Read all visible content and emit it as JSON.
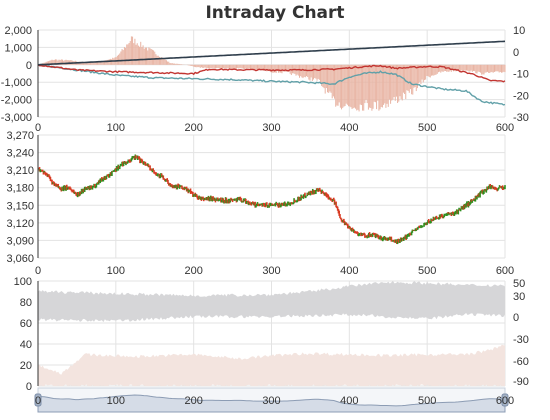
{
  "chart_data": {
    "title": "Intraday Chart",
    "type": "line",
    "x_axis": {
      "min": 0,
      "max": 600,
      "ticks": [
        "0",
        "100",
        "200",
        "300",
        "400",
        "500",
        "600"
      ]
    },
    "panels": [
      {
        "id": "top",
        "y_left": {
          "min": -3000,
          "max": 2000,
          "ticks": [
            "-3,000",
            "-2,000",
            "-1,000",
            "0",
            "1,000",
            "2,000"
          ]
        },
        "y_right": {
          "min": -30,
          "max": 10,
          "ticks": [
            "-30",
            "-20",
            "-10",
            "0",
            "10"
          ]
        },
        "colors": {
          "bars": "#e8b3a2",
          "dark_line": "#2f3e4c",
          "red_line": "#c23531",
          "teal_line": "#61a0a8"
        },
        "bars_keypoints": [
          [
            0,
            0
          ],
          [
            20,
            300
          ],
          [
            40,
            250
          ],
          [
            60,
            150
          ],
          [
            80,
            200
          ],
          [
            100,
            400
          ],
          [
            110,
            900
          ],
          [
            120,
            1500
          ],
          [
            130,
            1200
          ],
          [
            150,
            700
          ],
          [
            170,
            100
          ],
          [
            190,
            0
          ],
          [
            205,
            -150
          ],
          [
            230,
            -200
          ],
          [
            260,
            -200
          ],
          [
            280,
            -250
          ],
          [
            300,
            -400
          ],
          [
            320,
            -450
          ],
          [
            340,
            -700
          ],
          [
            360,
            -900
          ],
          [
            380,
            -2100
          ],
          [
            400,
            -2400
          ],
          [
            420,
            -2300
          ],
          [
            440,
            -2350
          ],
          [
            460,
            -2000
          ],
          [
            480,
            -1600
          ],
          [
            500,
            -700
          ],
          [
            520,
            -400
          ],
          [
            550,
            -300
          ],
          [
            570,
            -500
          ],
          [
            600,
            -400
          ]
        ],
        "dark_line": [
          [
            0,
            0
          ],
          [
            600,
            1350
          ]
        ],
        "red_line_keypoints": [
          [
            0,
            0
          ],
          [
            50,
            -300
          ],
          [
            100,
            -400
          ],
          [
            150,
            -450
          ],
          [
            200,
            -500
          ],
          [
            220,
            -250
          ],
          [
            250,
            -280
          ],
          [
            300,
            -300
          ],
          [
            340,
            -300
          ],
          [
            380,
            -250
          ],
          [
            420,
            -100
          ],
          [
            440,
            -50
          ],
          [
            460,
            -200
          ],
          [
            500,
            -100
          ],
          [
            520,
            -120
          ],
          [
            560,
            -550
          ],
          [
            580,
            -900
          ],
          [
            600,
            -950
          ]
        ],
        "teal_line_keypoints": [
          [
            0,
            0
          ],
          [
            50,
            -300
          ],
          [
            100,
            -600
          ],
          [
            150,
            -750
          ],
          [
            200,
            -800
          ],
          [
            250,
            -850
          ],
          [
            300,
            -950
          ],
          [
            340,
            -1000
          ],
          [
            380,
            -1100
          ],
          [
            400,
            -700
          ],
          [
            420,
            -500
          ],
          [
            440,
            -400
          ],
          [
            460,
            -550
          ],
          [
            480,
            -1100
          ],
          [
            520,
            -1400
          ],
          [
            550,
            -1500
          ],
          [
            570,
            -2100
          ],
          [
            600,
            -2300
          ]
        ]
      },
      {
        "id": "price",
        "y_left": {
          "min": 3060,
          "max": 3270,
          "ticks": [
            "3,060",
            "3,090",
            "3,120",
            "3,150",
            "3,180",
            "3,210",
            "3,240",
            "3,270"
          ]
        },
        "colors": {
          "up": "#2f8f1f",
          "down": "#d83a22"
        },
        "price_keypoints": [
          [
            0,
            3212
          ],
          [
            10,
            3205
          ],
          [
            20,
            3185
          ],
          [
            30,
            3178
          ],
          [
            40,
            3180
          ],
          [
            50,
            3168
          ],
          [
            60,
            3178
          ],
          [
            70,
            3180
          ],
          [
            80,
            3193
          ],
          [
            90,
            3200
          ],
          [
            100,
            3212
          ],
          [
            110,
            3222
          ],
          [
            120,
            3228
          ],
          [
            125,
            3232
          ],
          [
            140,
            3220
          ],
          [
            150,
            3205
          ],
          [
            160,
            3198
          ],
          [
            170,
            3185
          ],
          [
            180,
            3182
          ],
          [
            190,
            3178
          ],
          [
            200,
            3168
          ],
          [
            210,
            3160
          ],
          [
            220,
            3162
          ],
          [
            240,
            3158
          ],
          [
            260,
            3160
          ],
          [
            280,
            3150
          ],
          [
            300,
            3150
          ],
          [
            320,
            3152
          ],
          [
            330,
            3158
          ],
          [
            340,
            3165
          ],
          [
            350,
            3172
          ],
          [
            360,
            3175
          ],
          [
            370,
            3168
          ],
          [
            380,
            3158
          ],
          [
            390,
            3125
          ],
          [
            400,
            3112
          ],
          [
            410,
            3102
          ],
          [
            420,
            3098
          ],
          [
            430,
            3100
          ],
          [
            440,
            3093
          ],
          [
            450,
            3092
          ],
          [
            460,
            3088
          ],
          [
            470,
            3092
          ],
          [
            480,
            3105
          ],
          [
            490,
            3112
          ],
          [
            500,
            3120
          ],
          [
            510,
            3128
          ],
          [
            520,
            3132
          ],
          [
            530,
            3135
          ],
          [
            540,
            3140
          ],
          [
            550,
            3150
          ],
          [
            560,
            3160
          ],
          [
            570,
            3172
          ],
          [
            580,
            3182
          ],
          [
            590,
            3178
          ],
          [
            600,
            3182
          ]
        ]
      },
      {
        "id": "volume",
        "y_left": {
          "min": 0,
          "max": 100,
          "ticks": [
            "0",
            "20",
            "40",
            "60",
            "80",
            "100"
          ]
        },
        "y_right": {
          "min": -90,
          "max": 50,
          "ticks": [
            "-90",
            "-60",
            "-30",
            "0",
            "30",
            "50"
          ]
        },
        "colors": {
          "upper_band": "#d6d6d8",
          "lower_band": "#f3e4df"
        },
        "upper_band_keypoints": [
          [
            0,
            [
              63,
              90
            ]
          ],
          [
            100,
            [
              62,
              88
            ]
          ],
          [
            200,
            [
              66,
              86
            ]
          ],
          [
            300,
            [
              66,
              87
            ]
          ],
          [
            350,
            [
              67,
              90
            ]
          ],
          [
            400,
            [
              68,
              95
            ]
          ],
          [
            450,
            [
              66,
              99
            ]
          ],
          [
            500,
            [
              64,
              98
            ]
          ],
          [
            550,
            [
              68,
              96
            ]
          ],
          [
            600,
            [
              67,
              96
            ]
          ]
        ],
        "lower_band_keypoints": [
          [
            0,
            [
              0,
              20
            ]
          ],
          [
            30,
            [
              0,
              12
            ]
          ],
          [
            60,
            [
              0,
              30
            ]
          ],
          [
            120,
            [
              0,
              28
            ]
          ],
          [
            200,
            [
              0,
              30
            ]
          ],
          [
            260,
            [
              0,
              26
            ]
          ],
          [
            300,
            [
              0,
              29
            ]
          ],
          [
            350,
            [
              0,
              31
            ]
          ],
          [
            400,
            [
              0,
              30
            ]
          ],
          [
            450,
            [
              0,
              29
            ]
          ],
          [
            500,
            [
              0,
              30
            ]
          ],
          [
            550,
            [
              0,
              30
            ]
          ],
          [
            580,
            [
              0,
              34
            ]
          ],
          [
            600,
            [
              0,
              40
            ]
          ]
        ]
      }
    ],
    "slider": {
      "labels": [
        "0",
        "100",
        "200",
        "300",
        "400",
        "500",
        "600"
      ],
      "colors": {
        "fill": "#d5dce7",
        "line": "#8c9cb4",
        "handle": "#a5b3c6"
      }
    }
  }
}
